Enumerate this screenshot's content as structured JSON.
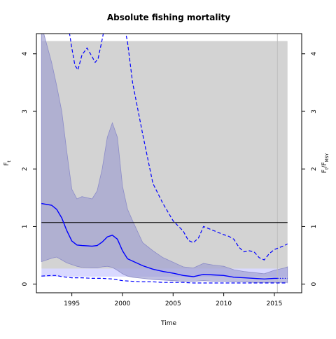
{
  "chart_data": {
    "type": "line",
    "title": "Absolute fishing mortality",
    "xlabel": "Time",
    "ylabel": "F",
    "ylabel_sub": "t",
    "ylabel_right": "F",
    "ylabel_right_sub": "t",
    "ylabel_right_mid": "/F",
    "ylabel_right_sub2": "MSY",
    "xlim": [
      1991.5,
      2017.7
    ],
    "ylim": [
      -0.15,
      4.35
    ],
    "ylim_right": [
      -0.15,
      4.35
    ],
    "x_ticks": [
      1995,
      2000,
      2005,
      2010,
      2015
    ],
    "y_ticks": [
      0,
      1,
      2,
      3,
      4
    ],
    "y_ticks_right": [
      0,
      1,
      2,
      3,
      4
    ],
    "fmsy_line": 1.07,
    "fmsy_band": [
      0.27,
      4.22
    ],
    "band_x": [
      1992,
      2016.3
    ],
    "last_data_year": 2015.3,
    "colors": {
      "estimate": "#0000ff",
      "ci_fill": "#9c9cd0",
      "band_fill": "#d3d3d3",
      "light_band": "#d9d9ff",
      "fmsy_line": "#000000",
      "vline": "#bdbdbd"
    },
    "series": [
      {
        "kind": "estimate",
        "x": [
          1992,
          1993,
          1993.5,
          1994,
          1994.5,
          1995,
          1995.5,
          1996,
          1997,
          1997.5,
          1998,
          1998.5,
          1999,
          1999.5,
          2000,
          2000.5,
          2001,
          2002,
          2003,
          2004,
          2005,
          2006,
          2007,
          2008,
          2009,
          2010,
          2011,
          2012,
          2013,
          2014,
          2015,
          2016,
          2016.3
        ],
        "y": [
          1.4,
          1.37,
          1.3,
          1.15,
          0.93,
          0.75,
          0.68,
          0.67,
          0.66,
          0.67,
          0.73,
          0.82,
          0.85,
          0.78,
          0.58,
          0.44,
          0.4,
          0.32,
          0.26,
          0.22,
          0.19,
          0.15,
          0.13,
          0.17,
          0.16,
          0.15,
          0.12,
          0.11,
          0.1,
          0.09,
          0.1,
          0.1,
          0.1
        ]
      },
      {
        "kind": "ci_upper",
        "x": [
          1992,
          1993,
          1993.5,
          1994,
          1994.5,
          1995,
          1995.5,
          1996,
          1997,
          1997.5,
          1998,
          1998.5,
          1999,
          1999.5,
          2000,
          2000.5,
          2001,
          2002,
          2003,
          2004,
          2005,
          2006,
          2007,
          2008,
          2009,
          2010,
          2011,
          2012,
          2013,
          2014,
          2015,
          2016,
          2016.3
        ],
        "y": [
          4.5,
          3.85,
          3.45,
          3.0,
          2.3,
          1.65,
          1.48,
          1.52,
          1.48,
          1.62,
          2.0,
          2.55,
          2.8,
          2.55,
          1.7,
          1.3,
          1.1,
          0.72,
          0.58,
          0.46,
          0.38,
          0.3,
          0.28,
          0.36,
          0.33,
          0.31,
          0.25,
          0.22,
          0.2,
          0.18,
          0.24,
          0.28,
          0.3
        ]
      },
      {
        "kind": "ci_lower",
        "x": [
          1992,
          1993,
          1993.5,
          1994,
          1994.5,
          1995,
          1995.5,
          1996,
          1997,
          1997.5,
          1998,
          1998.5,
          1999,
          1999.5,
          2000,
          2000.5,
          2001,
          2002,
          2003,
          2004,
          2005,
          2006,
          2007,
          2008,
          2009,
          2010,
          2011,
          2012,
          2013,
          2014,
          2015,
          2016,
          2016.3
        ],
        "y": [
          0.39,
          0.45,
          0.47,
          0.42,
          0.37,
          0.34,
          0.31,
          0.29,
          0.28,
          0.28,
          0.3,
          0.31,
          0.29,
          0.24,
          0.18,
          0.14,
          0.12,
          0.1,
          0.08,
          0.07,
          0.06,
          0.05,
          0.05,
          0.06,
          0.05,
          0.05,
          0.04,
          0.04,
          0.03,
          0.03,
          0.03,
          0.03,
          0.03
        ]
      },
      {
        "kind": "lower_dashed",
        "x": [
          1992,
          1993,
          1993.5,
          1994,
          1995,
          1996,
          1997,
          1998,
          1999,
          2000,
          2001,
          2002,
          2003,
          2004,
          2005,
          2006,
          2007,
          2008,
          2009,
          2010,
          2011,
          2012,
          2013,
          2014,
          2015,
          2016,
          2016.3
        ],
        "y": [
          0.14,
          0.15,
          0.15,
          0.13,
          0.11,
          0.11,
          0.1,
          0.1,
          0.09,
          0.06,
          0.05,
          0.04,
          0.04,
          0.03,
          0.03,
          0.03,
          0.02,
          0.02,
          0.02,
          0.02,
          0.02,
          0.02,
          0.02,
          0.02,
          0.02,
          0.02,
          0.02
        ]
      },
      {
        "kind": "upper_dashed",
        "x": [
          1992.9,
          1994.6,
          1995,
          1995.3,
          1995.6,
          1996,
          1996.5,
          1997,
          1997.3,
          1997.6,
          1998,
          1998.6,
          1999.5,
          2000.5,
          2001,
          2002,
          2003,
          2004,
          2005,
          2006,
          2006.5,
          2007,
          2007.5,
          2008,
          2009,
          2010,
          2010.5,
          2011,
          2011.5,
          2012,
          2012.5,
          2013,
          2013.5,
          2014,
          2014.5,
          2015,
          2016,
          2016.3
        ],
        "y": [
          4.6,
          4.55,
          4.1,
          3.8,
          3.72,
          3.98,
          4.1,
          3.95,
          3.85,
          3.92,
          4.25,
          4.8,
          5.1,
          4.2,
          3.5,
          2.6,
          1.75,
          1.4,
          1.1,
          0.92,
          0.76,
          0.72,
          0.8,
          1.0,
          0.93,
          0.86,
          0.83,
          0.78,
          0.64,
          0.56,
          0.58,
          0.56,
          0.46,
          0.42,
          0.53,
          0.6,
          0.67,
          0.7
        ]
      },
      {
        "kind": "forecast_dotted",
        "x": [
          2015.3,
          2016.3
        ],
        "y": [
          0.1,
          0.1
        ]
      }
    ]
  }
}
